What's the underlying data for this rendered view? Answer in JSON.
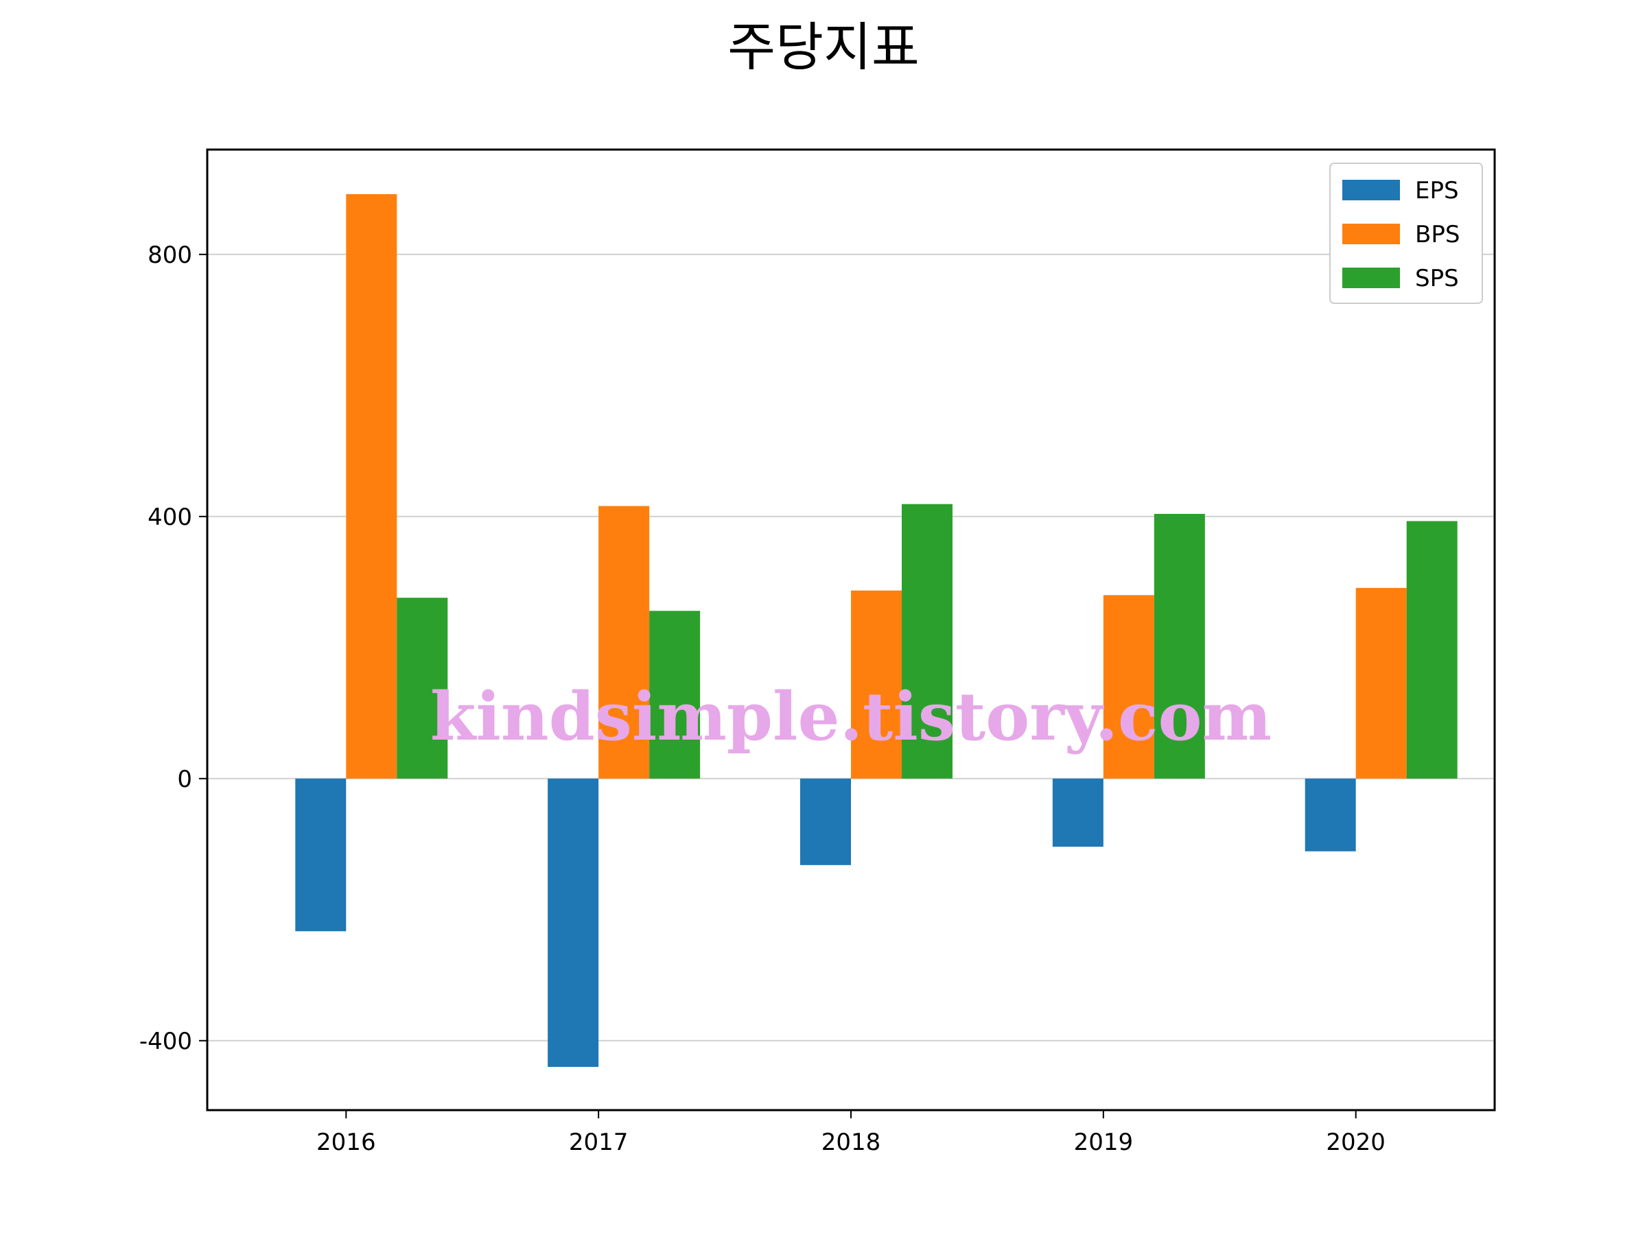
{
  "chart_data": {
    "type": "bar",
    "title": "주당지표",
    "xlabel": "",
    "ylabel": "",
    "categories": [
      "2016",
      "2017",
      "2018",
      "2019",
      "2020"
    ],
    "series": [
      {
        "name": "EPS",
        "color": "#1f77b4",
        "values": [
          -233,
          -440,
          -132,
          -104,
          -111
        ]
      },
      {
        "name": "BPS",
        "color": "#ff7f0e",
        "values": [
          892,
          416,
          287,
          280,
          291
        ]
      },
      {
        "name": "SPS",
        "color": "#2ca02c",
        "values": [
          276,
          256,
          419,
          404,
          393
        ]
      }
    ],
    "ylim": [
      -506,
      960
    ],
    "yticks": [
      {
        "value": -400,
        "label": "-400"
      },
      {
        "value": 0,
        "label": "0"
      },
      {
        "value": 400,
        "label": "400"
      },
      {
        "value": 800,
        "label": "800"
      }
    ],
    "grid": {
      "y": true,
      "x": false
    },
    "legend": {
      "position": "top-right"
    },
    "watermark": "kindsimple.tistory.com"
  }
}
